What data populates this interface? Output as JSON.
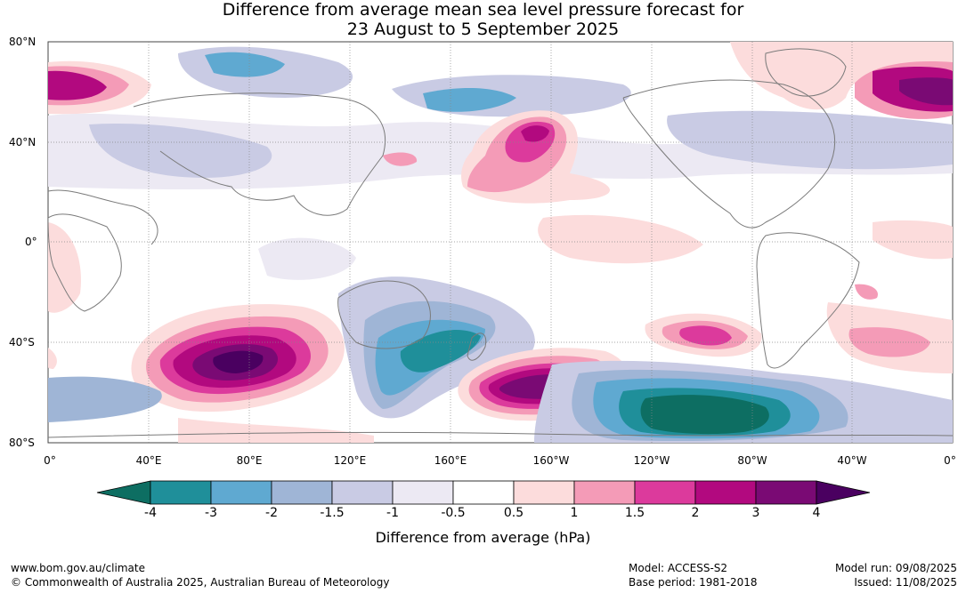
{
  "title": {
    "line1": "Difference from average mean sea level pressure forecast for",
    "line2": "23 August to 5 September 2025"
  },
  "latitude_labels": [
    "80°N",
    "40°N",
    "0°",
    "40°S",
    "80°S"
  ],
  "longitude_labels": [
    "0°",
    "40°E",
    "80°E",
    "120°E",
    "160°E",
    "160°W",
    "120°W",
    "80°W",
    "40°W",
    "0°"
  ],
  "colorbar": {
    "label": "Difference from average (hPa)",
    "ticks": [
      "-4",
      "-3",
      "-2",
      "-1.5",
      "-1",
      "-0.5",
      "0.5",
      "1",
      "1.5",
      "2",
      "3",
      "4"
    ],
    "colors": [
      "#0d6e62",
      "#1f8f9a",
      "#5fa9d1",
      "#9fb5d6",
      "#c9cbe4",
      "#ece9f3",
      "#ffffff",
      "#fcdcdc",
      "#f49bb7",
      "#dc3a9c",
      "#b2097f",
      "#7a0a74",
      "#4a0060"
    ]
  },
  "footer": {
    "website": "www.bom.gov.au/climate",
    "copyright": "© Commonwealth of Australia 2025, Australian Bureau of Meteorology",
    "model": "Model: ACCESS-S2",
    "base_period": "Base period: 1981-2018",
    "model_run": "Model run: 09/08/2025",
    "issued": "Issued: 11/08/2025"
  }
}
